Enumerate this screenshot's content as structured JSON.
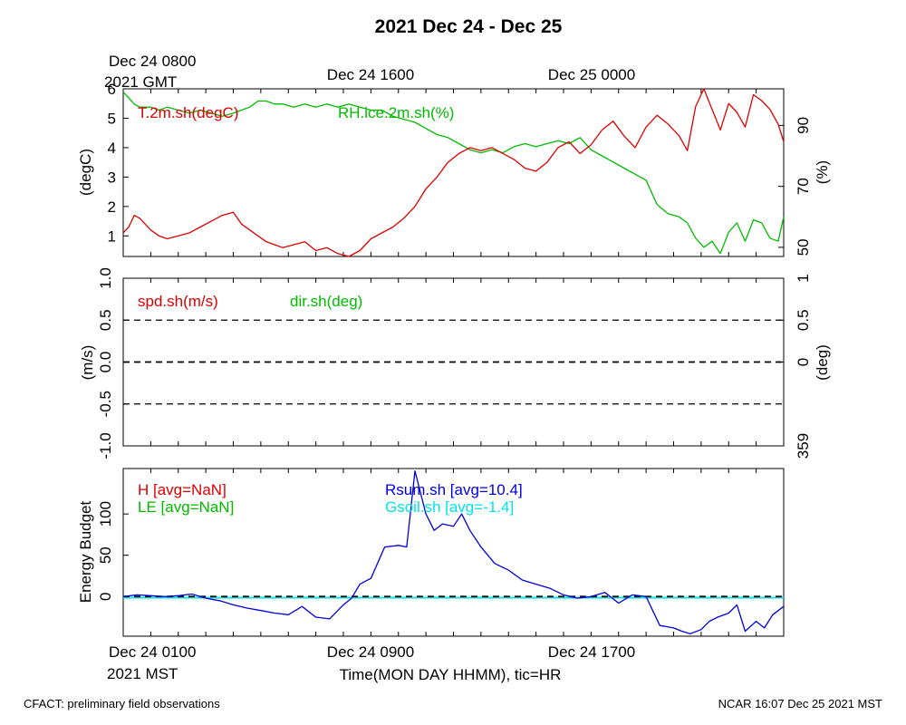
{
  "title": "2021 Dec 24 - Dec 25",
  "footer_left": "CFACT: preliminary field observations",
  "footer_right": "NCAR 16:07 Dec 25 2021 MST",
  "top_axis": {
    "line1": "Dec 24 0800",
    "line2": "2021 GMT",
    "labels": [
      {
        "hour": 8,
        "text": "Dec 24 1600"
      },
      {
        "hour": 16,
        "text": "Dec 25 0000"
      }
    ]
  },
  "bottom_axis": {
    "line1": "Dec 24 0100",
    "line2": "2021 MST",
    "xlabel": "Time(MON DAY HHMM), tic=HR",
    "labels": [
      {
        "hour": 8,
        "text": "Dec 24 0900"
      },
      {
        "hour": 16,
        "text": "Dec 24 1700"
      }
    ]
  },
  "colors": {
    "red": "#dd0000",
    "green": "#00bb00",
    "blue": "#0000dd",
    "cyan": "#00e5e5",
    "black": "#000000"
  },
  "chart_data": [
    {
      "type": "line",
      "id": "temperature_rh",
      "x_unit": "hours since Dec 24 0100 MST",
      "xlim": [
        0,
        24
      ],
      "ylabel": "(degC)",
      "ylim": [
        0.3,
        6
      ],
      "yticks": [
        1,
        2,
        3,
        4,
        5,
        6
      ],
      "y2label": "(%)",
      "y2lim": [
        47,
        102
      ],
      "y2ticks": [
        50,
        70,
        90
      ],
      "series": [
        {
          "name": "T.2m.sh(degC)",
          "axis": "left",
          "color": "red",
          "x": [
            0,
            0.2,
            0.4,
            0.6,
            0.8,
            1.0,
            1.3,
            1.6,
            2.0,
            2.4,
            2.8,
            3.2,
            3.6,
            4.0,
            4.3,
            4.6,
            4.9,
            5.2,
            5.5,
            5.8,
            6.2,
            6.6,
            7.0,
            7.4,
            7.8,
            8.2,
            8.6,
            9.0,
            9.4,
            9.8,
            10.2,
            10.6,
            11.0,
            11.4,
            11.8,
            12.2,
            12.6,
            13.0,
            13.4,
            13.8,
            14.2,
            14.6,
            15.0,
            15.4,
            15.8,
            16.2,
            16.6,
            17.0,
            17.4,
            17.8,
            18.2,
            18.6,
            19.0,
            19.4,
            19.8,
            20.2,
            20.5,
            20.8,
            21.1,
            21.4,
            21.7,
            22.0,
            22.3,
            22.6,
            22.9,
            23.2,
            23.5,
            23.8,
            24.0
          ],
          "values": [
            1.1,
            1.3,
            1.7,
            1.6,
            1.4,
            1.2,
            1.0,
            0.9,
            1.0,
            1.1,
            1.3,
            1.5,
            1.7,
            1.8,
            1.4,
            1.2,
            1.0,
            0.8,
            0.7,
            0.6,
            0.7,
            0.8,
            0.5,
            0.6,
            0.4,
            0.3,
            0.5,
            0.9,
            1.1,
            1.3,
            1.6,
            2.0,
            2.6,
            3.0,
            3.5,
            3.8,
            4.0,
            3.9,
            4.0,
            3.8,
            3.6,
            3.3,
            3.2,
            3.5,
            4.0,
            4.2,
            3.8,
            4.1,
            4.6,
            4.9,
            4.4,
            4.0,
            4.7,
            5.1,
            4.8,
            4.4,
            3.9,
            5.4,
            6.0,
            5.3,
            4.6,
            5.5,
            5.2,
            4.7,
            5.8,
            5.6,
            5.3,
            4.8,
            4.2
          ]
        },
        {
          "name": "RH.ice.2m.sh(%)",
          "axis": "right",
          "color": "green",
          "x": [
            0,
            0.2,
            0.4,
            0.6,
            0.8,
            1.0,
            1.3,
            1.6,
            2.0,
            2.4,
            2.8,
            3.2,
            3.6,
            4.0,
            4.3,
            4.6,
            4.9,
            5.2,
            5.5,
            5.8,
            6.2,
            6.6,
            7.0,
            7.4,
            7.8,
            8.2,
            8.6,
            9.0,
            9.4,
            9.8,
            10.2,
            10.6,
            11.0,
            11.4,
            11.8,
            12.2,
            12.6,
            13.0,
            13.4,
            13.8,
            14.2,
            14.6,
            15.0,
            15.4,
            15.8,
            16.2,
            16.6,
            17.0,
            17.4,
            17.8,
            18.2,
            18.6,
            19.0,
            19.4,
            19.8,
            20.2,
            20.5,
            20.8,
            21.1,
            21.4,
            21.7,
            22.0,
            22.3,
            22.6,
            22.9,
            23.2,
            23.5,
            23.8,
            24.0
          ],
          "values": [
            101,
            99,
            97,
            96,
            96,
            96,
            95,
            96,
            95,
            94,
            95,
            94,
            93,
            94,
            95,
            96,
            98,
            98,
            97,
            97,
            96,
            97,
            96,
            97,
            96,
            97,
            96,
            95,
            95,
            93,
            92,
            91,
            89,
            87,
            86,
            84,
            82,
            81,
            82,
            81,
            83,
            84,
            83,
            84,
            85,
            84,
            86,
            82,
            80,
            78,
            76,
            74,
            72,
            64,
            61,
            60,
            58,
            53,
            50,
            52,
            48,
            55,
            58,
            52,
            59,
            58,
            53,
            52,
            60
          ]
        }
      ],
      "series_labels": [
        {
          "text": "T.2m.sh(degC)",
          "color": "red"
        },
        {
          "text": "RH.ice.2m.sh(%)",
          "color": "green"
        }
      ]
    },
    {
      "type": "line",
      "id": "wind",
      "ylabel": "(m/s)",
      "ylim": [
        -1.0,
        1.0
      ],
      "yticks": [
        "-1.0",
        "-0.5",
        "0.0",
        "0.5",
        "1.0"
      ],
      "y2label": "(deg)",
      "y2ticks": [
        "359",
        "0",
        "0.5",
        "1"
      ],
      "series": [],
      "series_labels": [
        {
          "text": "spd.sh(m/s)",
          "color": "red"
        },
        {
          "text": "dir.sh(deg)",
          "color": "green"
        }
      ]
    },
    {
      "type": "line",
      "id": "energy_budget",
      "ylabel": "Energy Budget",
      "ylim": [
        -48,
        155
      ],
      "yticks": [
        0,
        50,
        100
      ],
      "series": [
        {
          "name": "Rsum.sh [avg=10.4]",
          "color": "blue",
          "x": [
            0,
            0.5,
            1,
            1.5,
            2,
            2.5,
            3,
            3.5,
            4,
            4.5,
            5,
            5.5,
            6,
            6.5,
            7,
            7.5,
            8,
            8.3,
            8.6,
            9,
            9.5,
            10,
            10.3,
            10.6,
            11,
            11.3,
            11.6,
            12,
            12.3,
            12.6,
            13,
            13.5,
            14,
            14.5,
            15,
            15.5,
            16,
            16.5,
            17,
            17.5,
            18,
            18.5,
            19,
            19.5,
            20,
            20.3,
            20.6,
            21,
            21.3,
            21.6,
            22,
            22.3,
            22.6,
            23,
            23.3,
            23.6,
            24
          ],
          "values": [
            0,
            2,
            1,
            0,
            1,
            3,
            -2,
            -5,
            -10,
            -14,
            -17,
            -20,
            -22,
            -12,
            -25,
            -27,
            -10,
            -2,
            15,
            22,
            60,
            62,
            60,
            152,
            100,
            80,
            88,
            85,
            100,
            80,
            60,
            40,
            32,
            20,
            15,
            10,
            2,
            -2,
            0,
            5,
            -8,
            2,
            0,
            -35,
            -38,
            -42,
            -45,
            -40,
            -30,
            -25,
            -20,
            -10,
            -42,
            -30,
            -38,
            -22,
            -12
          ]
        },
        {
          "name": "Gsoil.sh [avg=-1.4]",
          "color": "cyan",
          "x": [
            0,
            24
          ],
          "values": [
            -1.4,
            -1.4
          ]
        }
      ],
      "series_labels": [
        {
          "text": "H [avg=NaN]",
          "color": "red"
        },
        {
          "text": "LE [avg=NaN]",
          "color": "green"
        },
        {
          "text": "Rsum.sh [avg=10.4]",
          "color": "blue"
        },
        {
          "text": "Gsoil.sh [avg=-1.4]",
          "color": "cyan"
        }
      ]
    }
  ]
}
